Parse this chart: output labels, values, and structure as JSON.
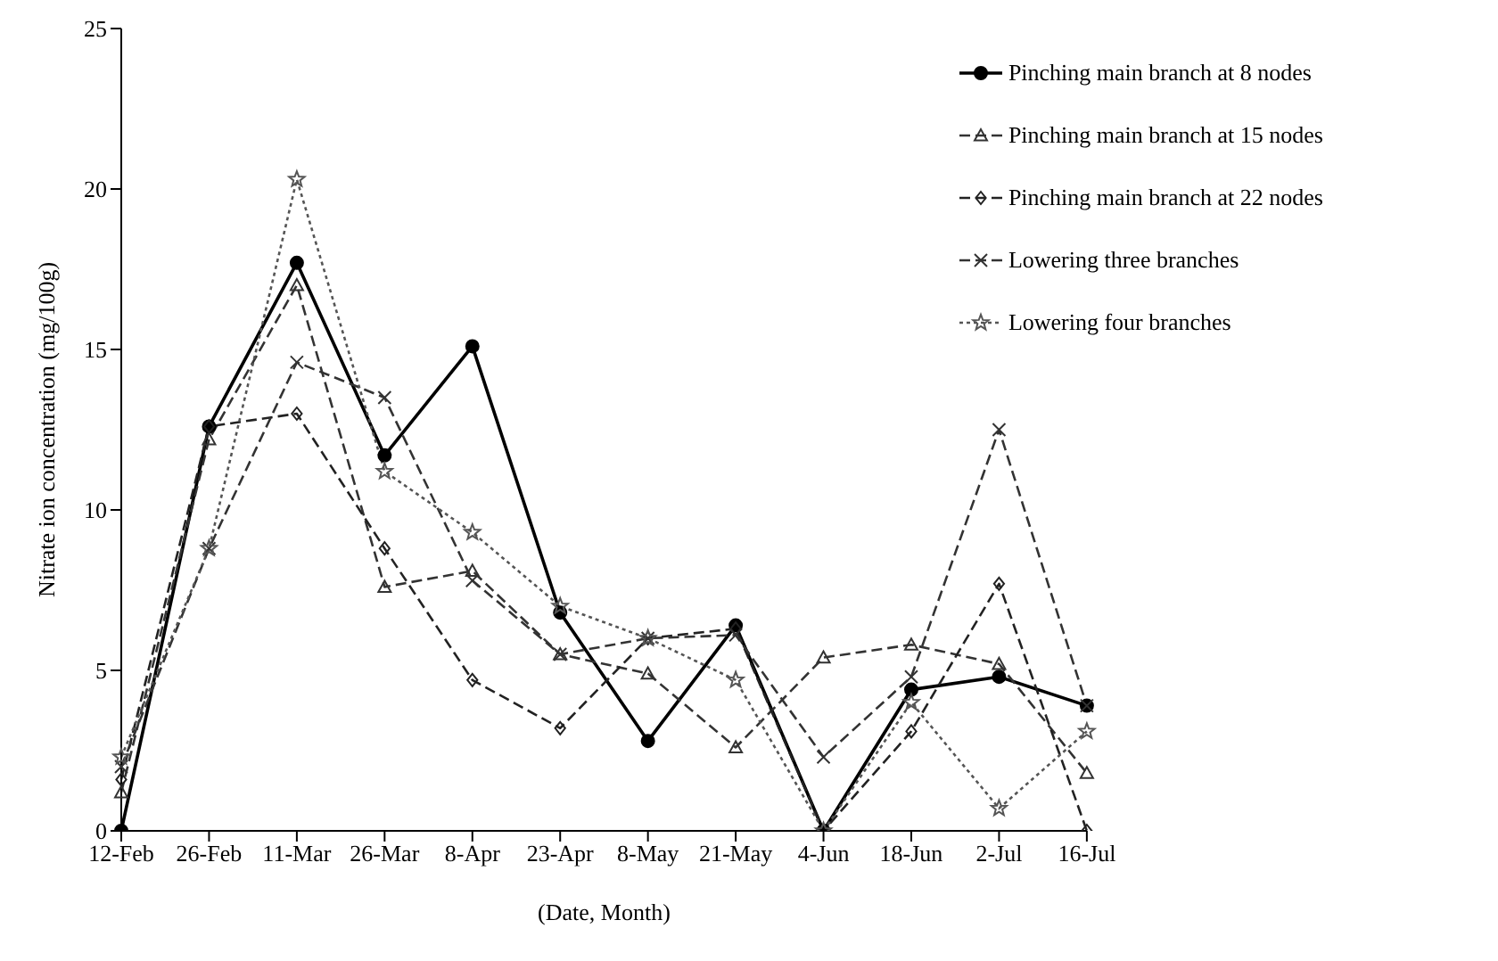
{
  "chart_data": {
    "type": "line",
    "xlabel": "(Date, Month)",
    "ylabel": "Nitrate ion concentration (mg/100g)",
    "categories": [
      "12-Feb",
      "26-Feb",
      "11-Mar",
      "26-Mar",
      "8-Apr",
      "23-Apr",
      "8-May",
      "21-May",
      "4-Jun",
      "18-Jun",
      "2-Jul",
      "16-Jul"
    ],
    "series": [
      {
        "name": "Pinching main branch at 8 nodes",
        "color": "#000000",
        "marker": "circle",
        "line_style": "solid",
        "values": [
          0,
          12.6,
          17.7,
          11.7,
          15.1,
          6.8,
          2.8,
          6.4,
          0,
          4.4,
          4.8,
          3.9
        ]
      },
      {
        "name": "Pinching main branch at 15 nodes",
        "color": "#333333",
        "marker": "triangle",
        "line_style": "dashed",
        "values": [
          1.2,
          12.2,
          17.0,
          7.6,
          8.1,
          5.5,
          4.9,
          2.6,
          5.4,
          5.8,
          5.2,
          1.8
        ]
      },
      {
        "name": "Pinching main branch at 22 nodes",
        "color": "#222222",
        "marker": "diamond",
        "line_style": "dashed",
        "values": [
          1.6,
          12.6,
          13.0,
          8.8,
          4.7,
          3.2,
          6.0,
          6.3,
          0,
          3.1,
          7.7,
          0
        ]
      },
      {
        "name": "Lowering three branches",
        "color": "#333333",
        "marker": "cross",
        "line_style": "dashed",
        "values": [
          2.0,
          8.8,
          14.6,
          13.5,
          7.8,
          5.5,
          6.0,
          6.1,
          2.3,
          4.8,
          12.5,
          3.9
        ]
      },
      {
        "name": "Lowering four branches",
        "color": "#555555",
        "marker": "star",
        "line_style": "dotted",
        "values": [
          2.3,
          8.8,
          20.3,
          11.2,
          9.3,
          7.0,
          6.0,
          4.7,
          0,
          4.0,
          0.7,
          3.1
        ]
      }
    ],
    "ylim": [
      0,
      25
    ],
    "yticks": [
      0,
      5,
      10,
      15,
      20,
      25
    ],
    "grid": false,
    "legend": "top right"
  }
}
